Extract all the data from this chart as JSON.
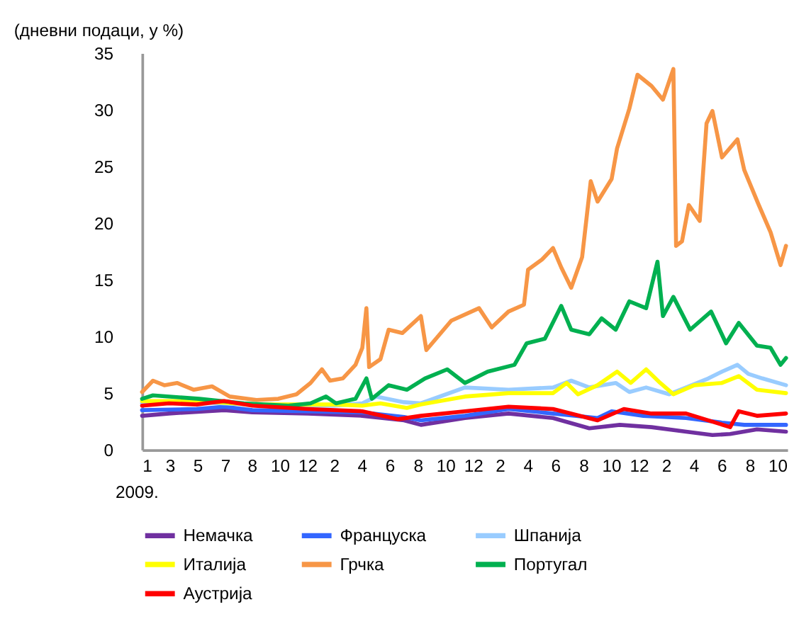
{
  "chart_data": {
    "type": "line",
    "title": "(дневни подаци, у %)",
    "xlim": [
      "2009-01-01",
      "2012-11-22"
    ],
    "xticks": [
      {
        "value": "2009-01-01",
        "label": "1"
      },
      {
        "value": "2009-03-03",
        "label": "3"
      },
      {
        "value": "2009-05-03",
        "label": "5"
      },
      {
        "value": "2009-07-03",
        "label": "7"
      },
      {
        "value": "2009-08-31",
        "label": "8"
      },
      {
        "value": "2009-10-31",
        "label": "10"
      },
      {
        "value": "2009-12-31",
        "label": "12"
      },
      {
        "value": "2010-02-28",
        "label": "2"
      },
      {
        "value": "2010-04-30",
        "label": "4"
      },
      {
        "value": "2010-06-30",
        "label": "6"
      },
      {
        "value": "2010-08-31",
        "label": "8"
      },
      {
        "value": "2010-10-31",
        "label": "10"
      },
      {
        "value": "2010-12-31",
        "label": "12"
      },
      {
        "value": "2011-02-28",
        "label": "2"
      },
      {
        "value": "2011-04-30",
        "label": "4"
      },
      {
        "value": "2011-06-30",
        "label": "6"
      },
      {
        "value": "2011-08-31",
        "label": "8"
      },
      {
        "value": "2011-10-31",
        "label": "10"
      },
      {
        "value": "2011-12-31",
        "label": "12"
      },
      {
        "value": "2012-02-29",
        "label": "2"
      },
      {
        "value": "2012-04-30",
        "label": "4"
      },
      {
        "value": "2012-06-30",
        "label": "6"
      },
      {
        "value": "2012-08-31",
        "label": "8"
      },
      {
        "value": "2012-10-31",
        "label": "10"
      }
    ],
    "ylim": [
      0,
      35
    ],
    "yticks": [
      0,
      5,
      10,
      15,
      20,
      25,
      30,
      35
    ],
    "grid": false,
    "legend": "bottom",
    "line_style": "solid",
    "marker": "none",
    "annotations": [
      "2009."
    ],
    "series": [
      {
        "name": "Немачка",
        "color": "#7030a0",
        "x": [
          "2009-01-01",
          "2009-03-01",
          "2009-07-01",
          "2009-09-01",
          "2010-01-01",
          "2010-05-01",
          "2010-08-01",
          "2010-09-07",
          "2010-12-13",
          "2011-03-19",
          "2011-06-25",
          "2011-09-13",
          "2011-11-19",
          "2012-01-28",
          "2012-04-13",
          "2012-06-10",
          "2012-07-19",
          "2012-09-16",
          "2012-11-19"
        ],
        "values": [
          3.0,
          3.2,
          3.5,
          3.3,
          3.2,
          3.0,
          2.6,
          2.2,
          2.8,
          3.2,
          2.8,
          1.9,
          2.2,
          2.0,
          1.6,
          1.3,
          1.4,
          1.8,
          1.6
        ]
      },
      {
        "name": "Француска",
        "color": "#3366ff",
        "x": [
          "2009-01-01",
          "2009-05-01",
          "2009-07-01",
          "2009-09-01",
          "2010-01-01",
          "2010-05-01",
          "2010-08-01",
          "2010-09-07",
          "2010-12-13",
          "2011-03-19",
          "2011-06-25",
          "2011-10-01",
          "2011-11-01",
          "2012-01-10",
          "2012-04-13",
          "2012-07-01",
          "2012-08-19",
          "2012-11-19"
        ],
        "values": [
          3.5,
          3.6,
          3.8,
          3.5,
          3.4,
          3.3,
          2.9,
          2.6,
          3.0,
          3.6,
          3.2,
          2.8,
          3.4,
          3.0,
          2.8,
          2.4,
          2.2,
          2.2
        ]
      },
      {
        "name": "Шпанија",
        "color": "#99ccff",
        "x": [
          "2009-01-01",
          "2009-05-01",
          "2009-09-01",
          "2010-01-01",
          "2010-03-01",
          "2010-05-01",
          "2010-06-01",
          "2010-08-01",
          "2010-09-07",
          "2010-12-13",
          "2011-03-19",
          "2011-06-25",
          "2011-08-04",
          "2011-09-13",
          "2011-11-10",
          "2011-12-10",
          "2012-01-16",
          "2012-03-07",
          "2012-04-13",
          "2012-06-01",
          "2012-07-01",
          "2012-08-04",
          "2012-08-28",
          "2012-09-28",
          "2012-11-19"
        ],
        "values": [
          4.1,
          4.2,
          4.0,
          3.9,
          3.9,
          4.1,
          4.7,
          4.2,
          4.1,
          5.5,
          5.3,
          5.5,
          6.1,
          5.5,
          5.9,
          5.1,
          5.5,
          4.9,
          5.5,
          6.3,
          6.9,
          7.5,
          6.7,
          6.3,
          5.7
        ]
      },
      {
        "name": "Италија",
        "color": "#ffff00",
        "x": [
          "2009-01-01",
          "2009-05-01",
          "2009-09-01",
          "2010-01-01",
          "2010-03-01",
          "2010-05-01",
          "2010-06-10",
          "2010-08-07",
          "2010-09-07",
          "2010-12-13",
          "2011-03-19",
          "2011-06-25",
          "2011-07-25",
          "2011-08-19",
          "2011-10-01",
          "2011-11-13",
          "2011-12-13",
          "2012-01-16",
          "2012-02-16",
          "2012-03-16",
          "2012-05-01",
          "2012-07-01",
          "2012-08-07",
          "2012-09-16",
          "2012-11-19"
        ],
        "values": [
          4.3,
          4.3,
          4.0,
          4.0,
          4.0,
          3.9,
          4.1,
          3.7,
          4.0,
          4.7,
          5.0,
          5.0,
          5.9,
          4.9,
          5.7,
          6.9,
          5.9,
          7.1,
          5.9,
          4.9,
          5.7,
          5.9,
          6.5,
          5.3,
          5.0
        ]
      },
      {
        "name": "Грчка",
        "color": "#f79646",
        "x": [
          "2009-01-01",
          "2009-01-25",
          "2009-02-19",
          "2009-03-19",
          "2009-04-25",
          "2009-06-04",
          "2009-07-13",
          "2009-09-10",
          "2009-10-28",
          "2009-12-07",
          "2010-01-07",
          "2010-02-01",
          "2010-02-19",
          "2010-03-19",
          "2010-04-16",
          "2010-05-01",
          "2010-05-10",
          "2010-05-16",
          "2010-06-10",
          "2010-06-28",
          "2010-07-28",
          "2010-09-07",
          "2010-09-19",
          "2010-11-13",
          "2011-01-13",
          "2011-02-10",
          "2011-03-19",
          "2011-04-22",
          "2011-05-01",
          "2011-06-01",
          "2011-06-25",
          "2011-07-13",
          "2011-08-04",
          "2011-08-28",
          "2011-09-16",
          "2011-10-01",
          "2011-11-01",
          "2011-11-13",
          "2011-12-10",
          "2011-12-28",
          "2012-01-28",
          "2012-02-22",
          "2012-03-16",
          "2012-03-22",
          "2012-04-04",
          "2012-04-19",
          "2012-05-13",
          "2012-05-28",
          "2012-06-10",
          "2012-07-01",
          "2012-08-04",
          "2012-08-19",
          "2012-09-19",
          "2012-10-16",
          "2012-11-07",
          "2012-11-19"
        ],
        "values": [
          5.1,
          6.1,
          5.7,
          5.9,
          5.3,
          5.6,
          4.7,
          4.4,
          4.5,
          4.9,
          5.9,
          7.1,
          6.1,
          6.3,
          7.5,
          9.0,
          12.5,
          7.3,
          8.0,
          10.6,
          10.3,
          11.8,
          8.8,
          11.4,
          12.5,
          10.8,
          12.2,
          12.8,
          15.9,
          16.8,
          17.8,
          16.1,
          14.3,
          17.0,
          23.7,
          21.9,
          23.9,
          26.6,
          30.1,
          33.1,
          32.1,
          30.9,
          33.6,
          18.0,
          18.4,
          21.6,
          20.2,
          28.8,
          29.9,
          25.8,
          27.4,
          24.7,
          21.7,
          19.2,
          16.3,
          18.0
        ]
      },
      {
        "name": "Португал",
        "color": "#00b050",
        "x": [
          "2009-01-01",
          "2009-01-25",
          "2009-05-07",
          "2009-08-13",
          "2009-11-19",
          "2010-01-07",
          "2010-02-10",
          "2010-03-04",
          "2010-04-16",
          "2010-05-10",
          "2010-05-22",
          "2010-06-28",
          "2010-08-07",
          "2010-09-16",
          "2010-11-04",
          "2010-12-13",
          "2011-02-01",
          "2011-04-01",
          "2011-04-28",
          "2011-06-07",
          "2011-07-13",
          "2011-08-04",
          "2011-09-13",
          "2011-10-10",
          "2011-11-10",
          "2011-12-10",
          "2012-01-16",
          "2012-02-10",
          "2012-02-22",
          "2012-03-16",
          "2012-04-22",
          "2012-06-07",
          "2012-07-10",
          "2012-08-07",
          "2012-09-16",
          "2012-10-16",
          "2012-11-07",
          "2012-11-19"
        ],
        "values": [
          4.5,
          4.8,
          4.5,
          4.1,
          3.9,
          4.1,
          4.7,
          4.1,
          4.5,
          6.3,
          4.5,
          5.7,
          5.3,
          6.3,
          7.1,
          5.9,
          6.9,
          7.5,
          9.4,
          9.8,
          12.7,
          10.6,
          10.2,
          11.6,
          10.6,
          13.1,
          12.5,
          16.6,
          11.8,
          13.5,
          10.6,
          12.2,
          9.4,
          11.2,
          9.2,
          9.0,
          7.5,
          8.1
        ]
      },
      {
        "name": "Аустрија",
        "color": "#ff0000",
        "x": [
          "2009-01-01",
          "2009-03-01",
          "2009-05-01",
          "2009-07-01",
          "2009-09-01",
          "2010-01-01",
          "2010-05-01",
          "2010-07-19",
          "2010-09-07",
          "2010-12-13",
          "2011-03-19",
          "2011-06-25",
          "2011-10-01",
          "2011-11-28",
          "2012-01-28",
          "2012-04-13",
          "2012-07-19",
          "2012-08-07",
          "2012-09-16",
          "2012-11-19"
        ],
        "values": [
          3.9,
          4.1,
          4.0,
          4.3,
          3.9,
          3.6,
          3.4,
          2.7,
          3.0,
          3.4,
          3.8,
          3.6,
          2.6,
          3.6,
          3.2,
          3.2,
          2.0,
          3.4,
          3.0,
          3.2
        ]
      }
    ]
  }
}
